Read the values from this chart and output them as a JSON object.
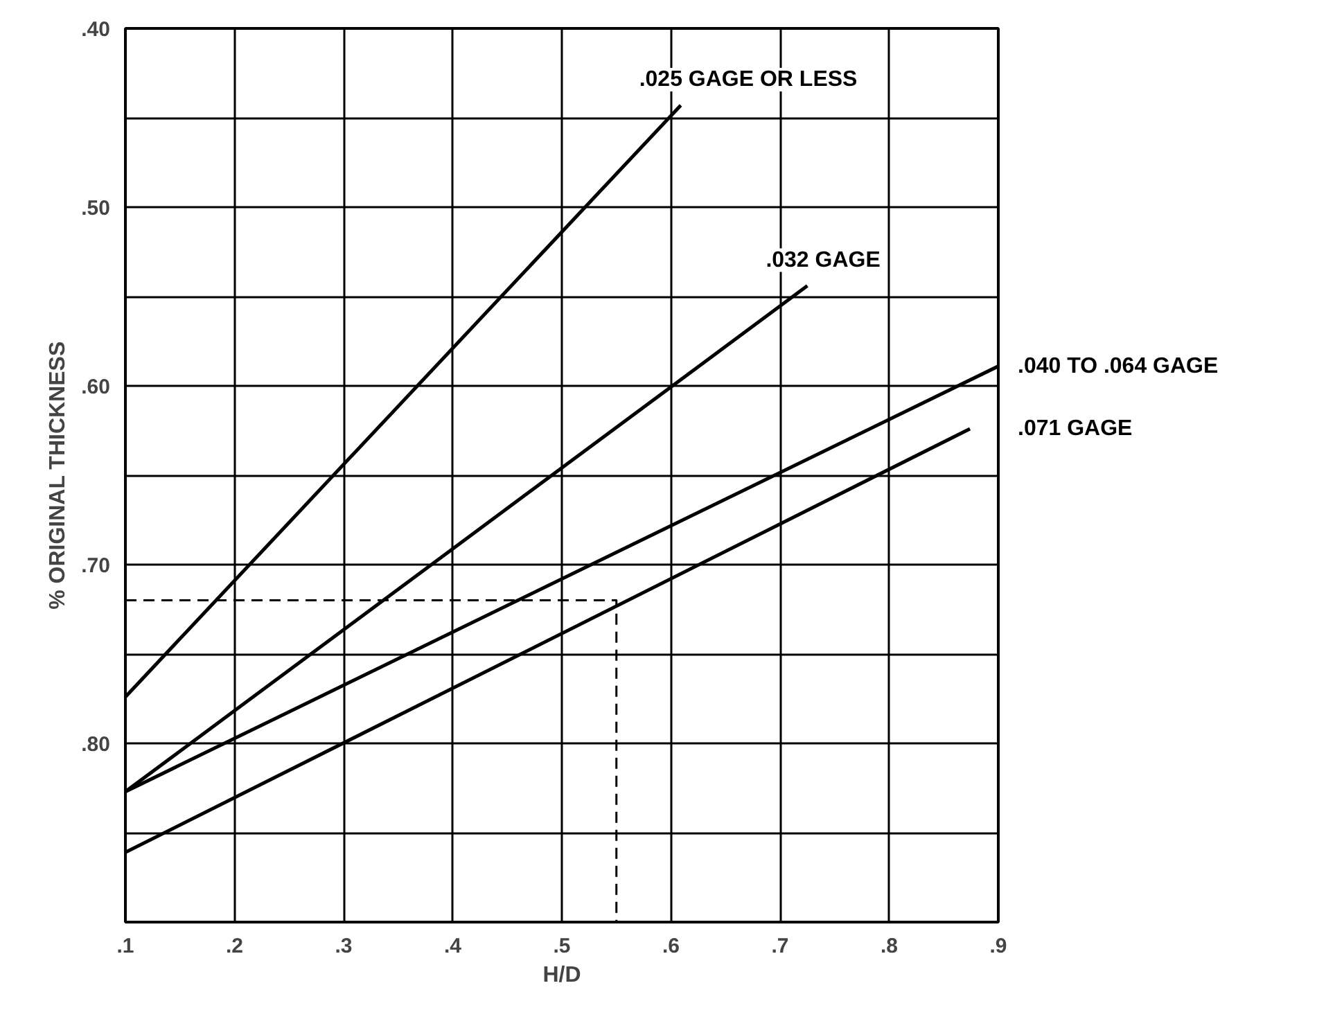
{
  "chart_data": {
    "type": "line",
    "xlabel": "H/D",
    "ylabel": "% ORIGINAL THICKNESS",
    "xlim": [
      0.1,
      0.9
    ],
    "ylim": [
      0.9,
      0.4
    ],
    "xticks": [
      {
        "value": 0.1,
        "label": ".1"
      },
      {
        "value": 0.2,
        "label": ".2"
      },
      {
        "value": 0.3,
        "label": ".3"
      },
      {
        "value": 0.4,
        "label": ".4"
      },
      {
        "value": 0.5,
        "label": ".5"
      },
      {
        "value": 0.6,
        "label": ".6"
      },
      {
        "value": 0.7,
        "label": ".7"
      },
      {
        "value": 0.8,
        "label": ".8"
      },
      {
        "value": 0.9,
        "label": ".9"
      }
    ],
    "yticks": [
      {
        "value": 0.4,
        "label": ".40"
      },
      {
        "value": 0.45,
        "label": null
      },
      {
        "value": 0.5,
        "label": ".50"
      },
      {
        "value": 0.55,
        "label": null
      },
      {
        "value": 0.6,
        "label": ".60"
      },
      {
        "value": 0.65,
        "label": null
      },
      {
        "value": 0.7,
        "label": ".70"
      },
      {
        "value": 0.75,
        "label": null
      },
      {
        "value": 0.8,
        "label": ".80"
      },
      {
        "value": 0.85,
        "label": null
      },
      {
        "value": 0.9,
        "label": null
      }
    ],
    "grid": true,
    "legend": false,
    "marker": "none",
    "series": [
      {
        "name": ".025 GAGE OR LESS",
        "color": "#000000",
        "x": [
          0.1,
          0.609
        ],
        "values": [
          0.774,
          0.443
        ]
      },
      {
        "name": ".032 GAGE",
        "color": "#000000",
        "x": [
          0.1,
          0.725
        ],
        "values": [
          0.827,
          0.544
        ]
      },
      {
        "name": ".040 TO .064 GAGE",
        "color": "#000000",
        "x": [
          0.1,
          0.9
        ],
        "values": [
          0.827,
          0.589
        ]
      },
      {
        "name": ".071 GAGE",
        "color": "#000000",
        "x": [
          0.1,
          0.874
        ],
        "values": [
          0.861,
          0.624
        ]
      },
      {
        "color": "#000000",
        "line_style": "dashed",
        "x": [
          0.1,
          0.55,
          0.55
        ],
        "values": [
          0.72,
          0.72,
          0.9
        ]
      }
    ]
  }
}
